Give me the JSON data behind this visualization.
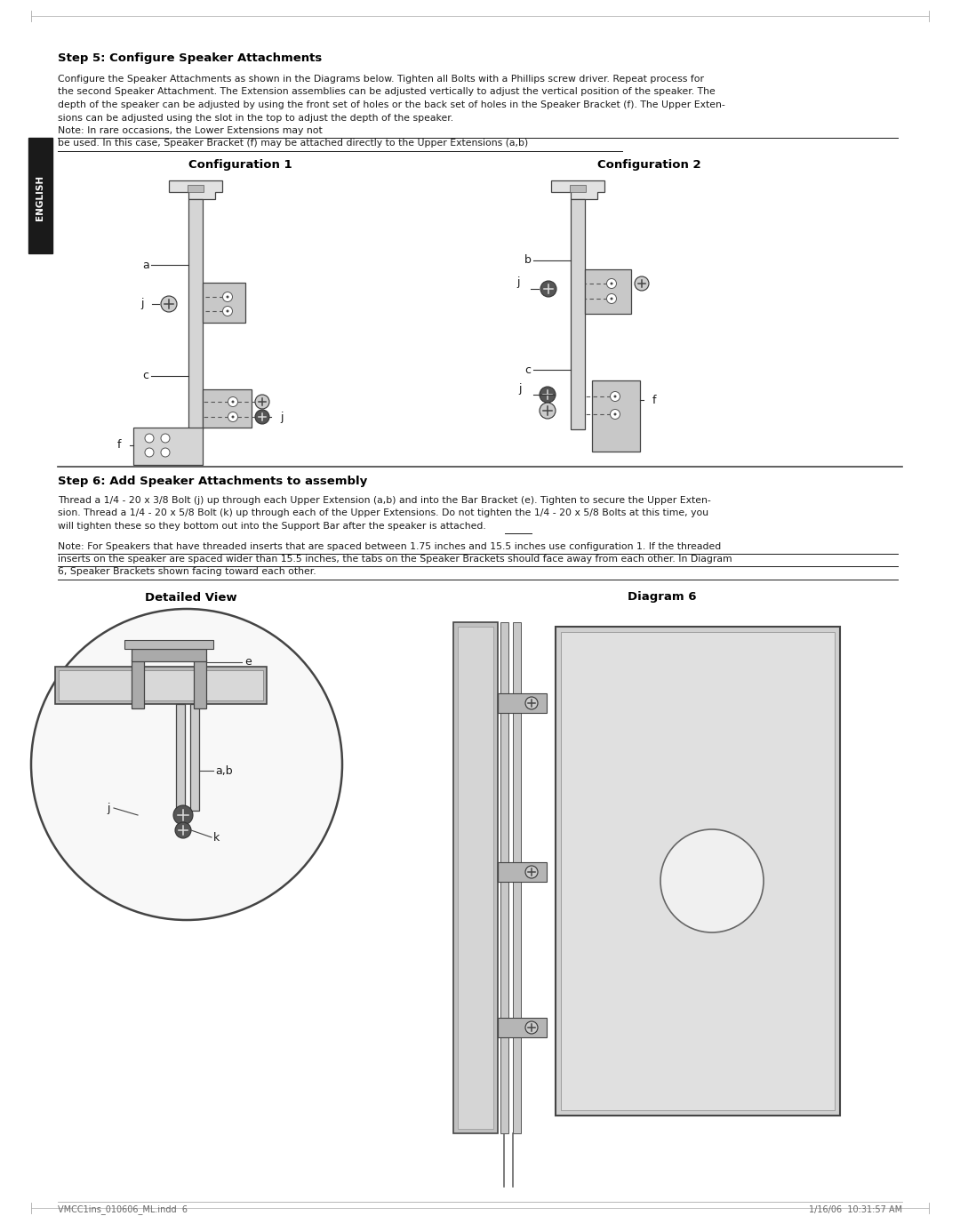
{
  "page_bg": "#ffffff",
  "step5_title": "Step 5: Configure Speaker Attachments",
  "step5_body_lines": [
    "Configure the Speaker Attachments as shown in the Diagrams below. Tighten all Bolts with a Phillips screw driver. Repeat process for",
    "the second Speaker Attachment. The Extension assemblies can be adjusted vertically to adjust the vertical position of the speaker. The",
    "depth of the speaker can be adjusted by using the front set of holes or the back set of holes in the Speaker Bracket (f). The Upper Exten-",
    "sions can be adjusted using the slot in the top to adjust the depth of the speaker."
  ],
  "step5_note_line1": "Note: In rare occasions, the Lower Extensions may not",
  "step5_note_line2": "be used. In this case, Speaker Bracket (f) may be attached directly to the Upper Extensions (a,b)",
  "config1_title": "Configuration 1",
  "config2_title": "Configuration 2",
  "step6_title": "Step 6: Add Speaker Attachments to assembly",
  "step6_body_lines": [
    "Thread a 1/4 - 20 x 3/8 Bolt (j) up through each Upper Extension (a,b) and into the Bar Bracket (e). Tighten to secure the Upper Exten-",
    "sion. Thread a 1/4 - 20 x 5/8 Bolt (k) up through each of the Upper Extensions. Do not tighten the 1/4 - 20 x 5/8 Bolts at this time, you",
    "will tighten these so they bottom out into the Support Bar after the speaker is attached."
  ],
  "step6_note_lines": [
    "Note: For Speakers that have threaded inserts that are spaced between 1.75 inches and 15.5 inches use configuration 1. If the threaded",
    "inserts on the speaker are spaced wider than 15.5 inches, the tabs on the Speaker Brackets should face away from each other. In Diagram",
    "6, Speaker Brackets shown facing toward each other."
  ],
  "detailed_view_title": "Detailed View",
  "diagram6_title": "Diagram 6",
  "footer_left": "VMCC1ins_010606_ML.indd  6",
  "footer_right": "1/16/06  10:31:57 AM",
  "english_tab": "ENGLISH",
  "text_color": "#1a1a1a",
  "dark": "#222222",
  "mid": "#888888",
  "light": "#cccccc",
  "lighter": "#e0e0e0",
  "lightest": "#f0f0f0"
}
